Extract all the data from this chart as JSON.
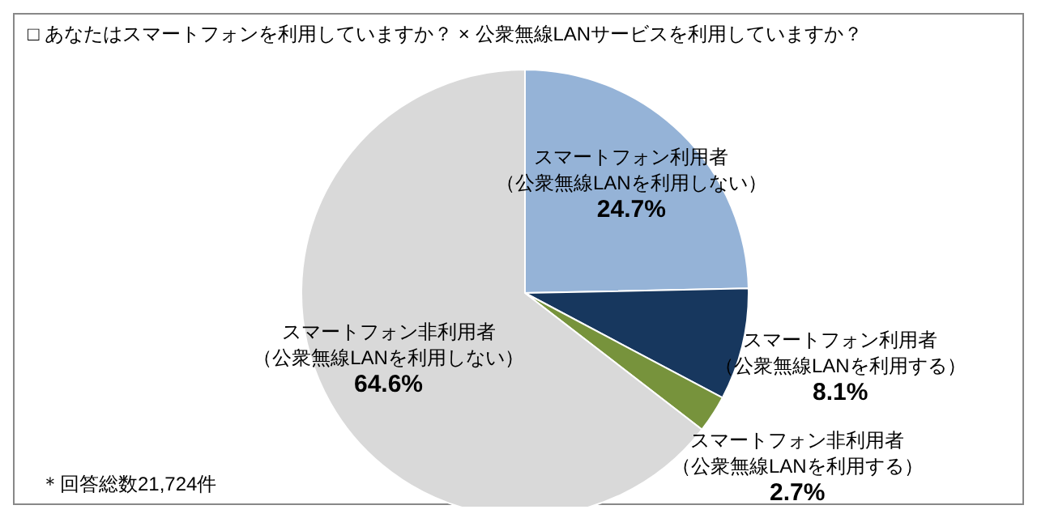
{
  "chart_data": {
    "type": "pie",
    "title": "□ あなたはスマートフォンを利用していますか？ × 公衆無線LANサービスを利用していますか？",
    "categories": [
      "スマートフォン利用者（公衆無線LANを利用しない）",
      "スマートフォン利用者（公衆無線LANを利用する）",
      "スマートフォン非利用者（公衆無線LANを利用する）",
      "スマートフォン非利用者（公衆無線LANを利用しない）"
    ],
    "values": [
      24.7,
      8.1,
      2.7,
      64.6
    ],
    "colors": [
      "#95b3d7",
      "#17375e",
      "#77933c",
      "#d9d9d9"
    ],
    "value_labels": [
      "24.7%",
      "8.1%",
      "2.7%",
      "64.6%"
    ],
    "legend": false,
    "annotations": [
      "＊回答総数21,724件"
    ]
  }
}
